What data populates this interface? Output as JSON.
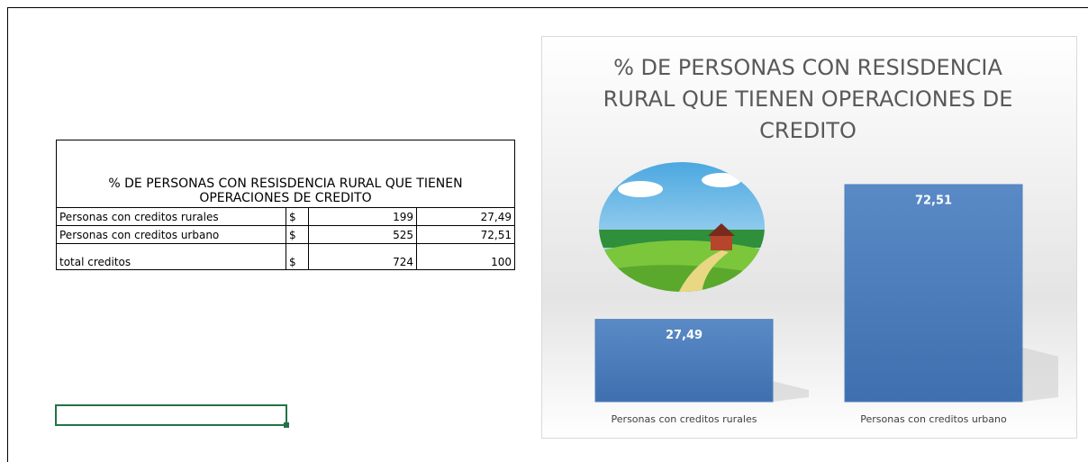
{
  "table": {
    "title": "% DE PERSONAS CON RESISDENCIA RURAL QUE TIENEN OPERACIONES DE CREDITO",
    "rows": [
      [
        "Personas con creditos rurales",
        "$",
        "199",
        "27,49"
      ],
      [
        "Personas con creditos urbano",
        "$",
        "525",
        "72,51"
      ],
      [
        "total creditos",
        "$",
        "724",
        "100"
      ]
    ]
  },
  "chart_data": {
    "type": "bar",
    "title": "% DE PERSONAS CON RESISDENCIA RURAL QUE TIENEN OPERACIONES DE CREDITO",
    "categories": [
      "Personas con creditos rurales",
      "Personas con creditos urbano"
    ],
    "values": [
      27.49,
      72.51
    ],
    "value_labels": [
      "27,49",
      "72,51"
    ],
    "color": "#4f81bd"
  }
}
